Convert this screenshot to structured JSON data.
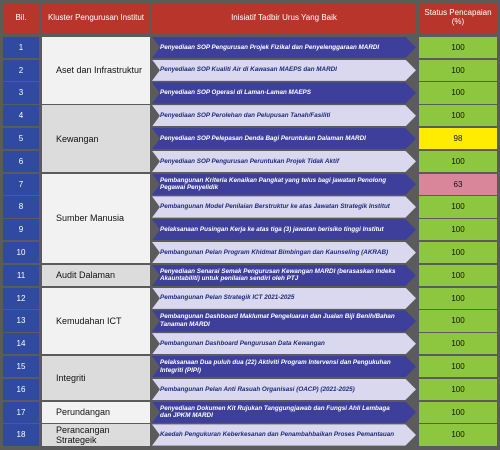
{
  "header": {
    "bil": "Bil.",
    "cluster": "Kluster Pengurusan Institut",
    "initiative": "Inisiatif Tadbir Urus Yang Baik",
    "status": "Status Pencapaian (%)"
  },
  "clusters": [
    {
      "name": "Aset dan Infrastruktur",
      "rows": [
        {
          "no": "1",
          "initiative": "Penyediaan SOP Pengurusan Projek Fizikal dan Penyelenggaraan MARDI",
          "status": "100",
          "color": "#8dc63f"
        },
        {
          "no": "2",
          "initiative": "Penyediaan SOP Kualiti Air di Kawasan MAEPS dan MARDI",
          "status": "100",
          "color": "#8dc63f"
        },
        {
          "no": "3",
          "initiative": "Penyediaan SOP Operasi di Laman-Laman MAEPS",
          "status": "100",
          "color": "#8dc63f"
        }
      ]
    },
    {
      "name": "Kewangan",
      "rows": [
        {
          "no": "4",
          "initiative": "Penyediaan SOP Perolehan dan Pelupusan Tanah/Fasiliti",
          "status": "100",
          "color": "#8dc63f"
        },
        {
          "no": "5",
          "initiative": "Penyediaan SOP Pelepasan Denda Bagi Peruntukan Dalaman MARDI",
          "status": "98",
          "color": "#ffec00"
        },
        {
          "no": "6",
          "initiative": "Penyediaan SOP Pengurusan Peruntukan Projek Tidak Aktif",
          "status": "100",
          "color": "#8dc63f"
        }
      ]
    },
    {
      "name": "Sumber Manusia",
      "rows": [
        {
          "no": "7",
          "initiative": "Pembangunan Kriteria Kenaikan Pangkat yang telus bagi jawatan Penolong Pegawai Penyelidik",
          "status": "63",
          "color": "#d9869b"
        },
        {
          "no": "8",
          "initiative": "Pembangunan Model Penilaian Berstruktur ke atas Jawatan Strategik Institut",
          "status": "100",
          "color": "#8dc63f"
        },
        {
          "no": "9",
          "initiative": "Pelaksanaan Pusingan Kerja ke atas tiga (3) jawatan berisiko tinggi Institut",
          "status": "100",
          "color": "#8dc63f"
        },
        {
          "no": "10",
          "initiative": "Pembangunan Pelan Program Khidmat Bimbingan dan Kaunseling (AKRAB)",
          "status": "100",
          "color": "#8dc63f"
        }
      ]
    },
    {
      "name": "Audit Dalaman",
      "rows": [
        {
          "no": "11",
          "initiative": "Penyediaan Senarai Semak Pengurusan Kewangan MARDI (berasaskan Indeks Akauntabiliti) untuk penilaian sendiri oleh PTJ",
          "status": "100",
          "color": "#8dc63f"
        }
      ]
    },
    {
      "name": "Kemudahan ICT",
      "rows": [
        {
          "no": "12",
          "initiative": "Pembangunan Pelan Strategik ICT 2021-2025",
          "status": "100",
          "color": "#8dc63f"
        },
        {
          "no": "13",
          "initiative": "Pembangunan Dashboard Maklumat Pengeluaran dan Jualan Biji Benih/Bahan Tanaman MARDI",
          "status": "100",
          "color": "#8dc63f"
        },
        {
          "no": "14",
          "initiative": "Pembangunan Dashboard Pengurusan Data Kewangan",
          "status": "100",
          "color": "#8dc63f"
        }
      ]
    },
    {
      "name": "Integriti",
      "rows": [
        {
          "no": "15",
          "initiative": "Pelaksanaan Dua puluh dua (22) Aktiviti Program Intervensi dan Pengukuhan Integriti (PIPI)",
          "status": "100",
          "color": "#8dc63f"
        },
        {
          "no": "16",
          "initiative": "Pembangunan Pelan Anti Rasuah Organisasi (OACP) (2021-2025)",
          "status": "100",
          "color": "#8dc63f"
        }
      ]
    },
    {
      "name": "Perundangan",
      "rows": [
        {
          "no": "17",
          "initiative": "Penyediaan Dokumen Kit Rujukan Tanggungjawab dan Fungsi Ahli Lembaga dan JPKM MARDI",
          "status": "100",
          "color": "#8dc63f"
        }
      ]
    },
    {
      "name": "Perancangan Strategeik",
      "rows": [
        {
          "no": "18",
          "initiative": "Kaedah Pengukuran Keberkesanan dan Penambahbaikan Proses Pemantauan",
          "status": "100",
          "color": "#8dc63f"
        }
      ]
    }
  ]
}
